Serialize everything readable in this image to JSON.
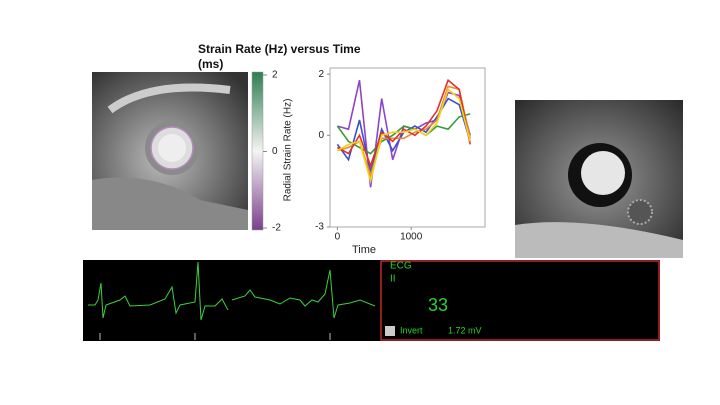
{
  "chart_data": {
    "type": "line",
    "title": "Strain Rate (Hz) versus Time (ms)",
    "xlabel": "Time",
    "ylabel": "Radial Strain Rate (Hz)",
    "x": [
      0,
      150,
      300,
      450,
      600,
      750,
      900,
      1050,
      1200,
      1350,
      1500,
      1650,
      1800
    ],
    "series": [
      {
        "color": "#8e44c8",
        "values": [
          0.3,
          0.2,
          1.8,
          -1.7,
          1.2,
          -0.8,
          0.3,
          0.2,
          0.4,
          0.5,
          1.4,
          1.3,
          0.0
        ]
      },
      {
        "color": "#3b4fd0",
        "values": [
          -0.3,
          -0.8,
          0.5,
          -1.2,
          0.2,
          -0.5,
          0.1,
          0.3,
          0.1,
          0.6,
          1.2,
          1.0,
          -0.2
        ]
      },
      {
        "color": "#3a9a3a",
        "values": [
          0.3,
          -0.2,
          -0.4,
          -0.6,
          -0.2,
          0.0,
          0.3,
          0.2,
          0.0,
          0.3,
          0.2,
          0.6,
          0.7
        ]
      },
      {
        "color": "#f08a2a",
        "values": [
          -0.5,
          -0.4,
          -0.2,
          -1.3,
          -0.1,
          -0.1,
          -0.1,
          0.1,
          0.2,
          0.5,
          1.6,
          1.5,
          -0.1
        ]
      },
      {
        "color": "#e03030",
        "values": [
          -0.4,
          -0.6,
          0.0,
          -1.0,
          0.1,
          -0.2,
          0.2,
          0.0,
          0.3,
          0.8,
          1.8,
          1.5,
          -0.3
        ]
      },
      {
        "color": "#f2d21a",
        "values": [
          -0.5,
          -0.3,
          -0.2,
          -1.5,
          0.0,
          0.1,
          0.1,
          0.2,
          0.0,
          0.4,
          1.5,
          1.2,
          -0.2
        ]
      }
    ],
    "xlim": [
      -100,
      2000
    ],
    "xticks": [
      0,
      1000
    ],
    "ylim": [
      -3,
      2.2
    ],
    "yticks": [
      -3,
      0,
      2
    ],
    "grid": false
  },
  "colorbar": {
    "ticks": [
      2,
      0,
      -2
    ]
  },
  "ecg": {
    "lead_title": "ECG",
    "lead": "II",
    "rate": "33",
    "invert": "Invert",
    "amplitude": "1.72 mV"
  }
}
